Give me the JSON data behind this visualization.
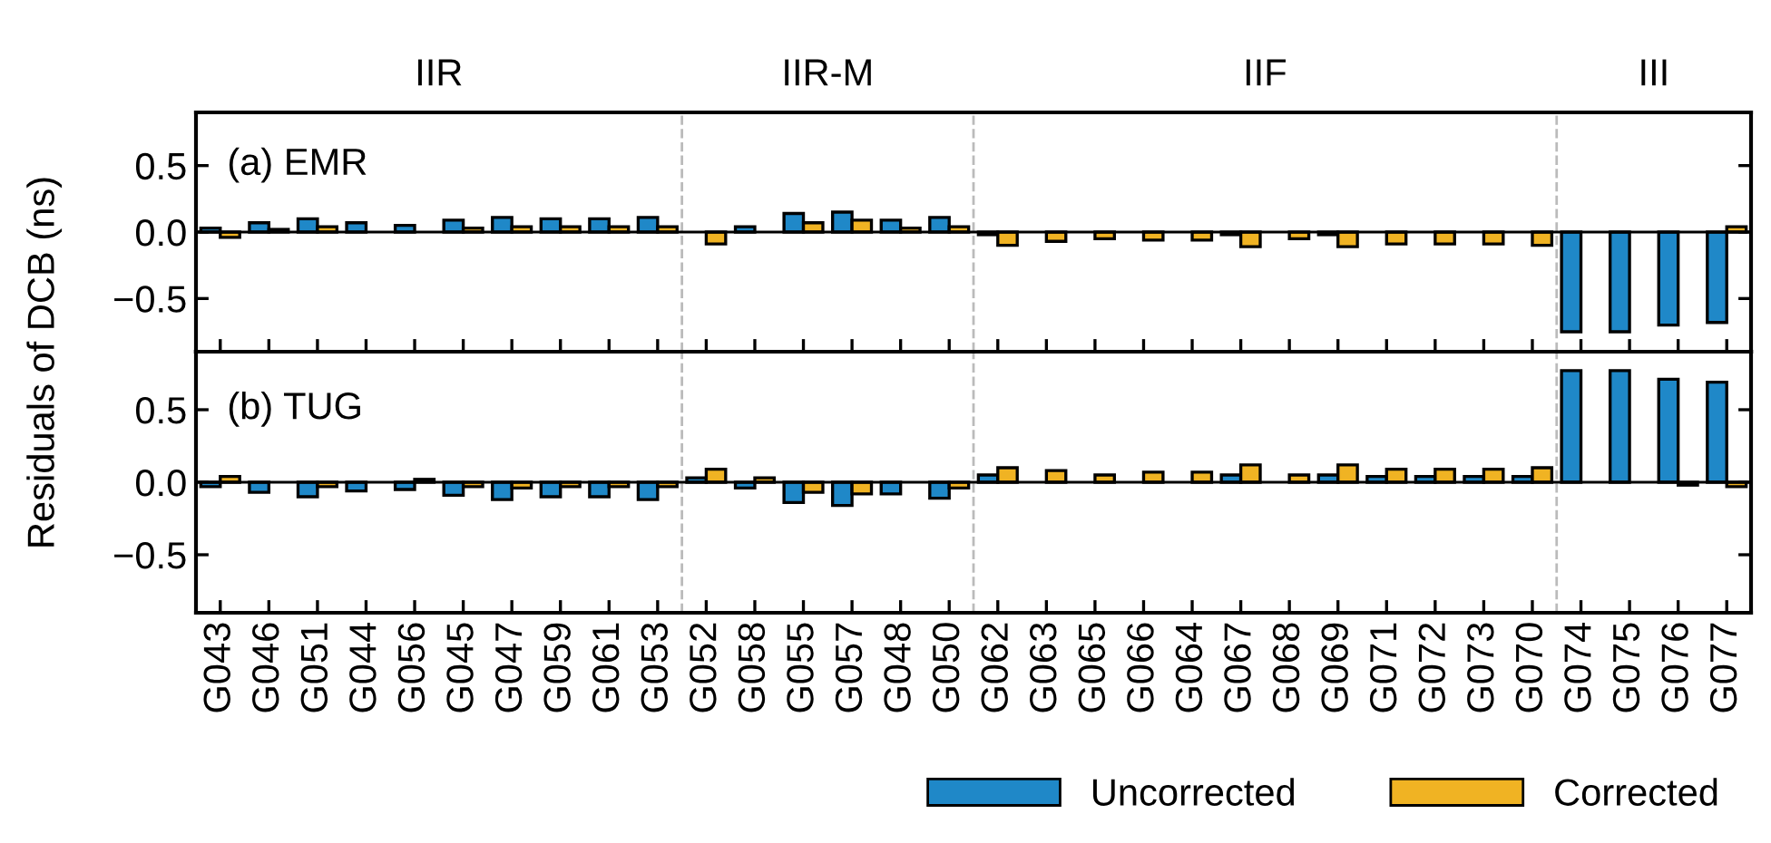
{
  "chart_data": [
    {
      "type": "bar",
      "title": "(a) EMR",
      "ylabel": "Residuals of DCB (ns)",
      "series": [
        {
          "name": "Uncorrected",
          "color": "#1f88c8",
          "values": [
            0.03,
            0.07,
            0.1,
            0.07,
            0.05,
            0.09,
            0.11,
            0.1,
            0.1,
            0.11,
            null,
            0.04,
            0.14,
            0.15,
            0.09,
            0.11,
            -0.02,
            null,
            null,
            null,
            null,
            -0.02,
            null,
            -0.02,
            null,
            null,
            null,
            null,
            -0.75,
            -0.75,
            -0.7,
            -0.68
          ]
        },
        {
          "name": "Corrected",
          "color": "#f0b323",
          "values": [
            -0.04,
            0.02,
            0.04,
            null,
            null,
            0.03,
            0.04,
            0.04,
            0.04,
            0.04,
            -0.09,
            null,
            0.07,
            0.09,
            0.03,
            0.04,
            -0.1,
            -0.07,
            -0.05,
            -0.06,
            -0.06,
            -0.11,
            -0.05,
            -0.11,
            -0.09,
            -0.09,
            -0.09,
            -0.1,
            null,
            null,
            null,
            0.04
          ]
        }
      ],
      "ylim": [
        -0.9,
        0.9
      ],
      "yticks": [
        {
          "value": -0.5,
          "label": "−0.5"
        },
        {
          "value": 0,
          "label": "0.0"
        },
        {
          "value": 0.5,
          "label": "0.5"
        }
      ],
      "tick_labels": "y",
      "annotations": [
        "IIR",
        "IIR-M",
        "IIF",
        "III"
      ],
      "legend": "bottom right"
    },
    {
      "type": "bar",
      "title": "(b) TUG",
      "categories": [
        "G043",
        "G046",
        "G051",
        "G044",
        "G056",
        "G045",
        "G047",
        "G059",
        "G061",
        "G053",
        "G052",
        "G058",
        "G055",
        "G057",
        "G048",
        "G050",
        "G062",
        "G063",
        "G065",
        "G066",
        "G064",
        "G067",
        "G068",
        "G069",
        "G071",
        "G072",
        "G073",
        "G070",
        "G074",
        "G075",
        "G076",
        "G077"
      ],
      "series": [
        {
          "color": "#1f88c8",
          "values": [
            -0.03,
            -0.07,
            -0.1,
            -0.06,
            -0.05,
            -0.09,
            -0.12,
            -0.1,
            -0.1,
            -0.12,
            0.03,
            -0.04,
            -0.14,
            -0.16,
            -0.08,
            -0.11,
            0.05,
            null,
            null,
            null,
            null,
            0.05,
            null,
            0.05,
            0.04,
            0.04,
            0.04,
            0.04,
            0.77,
            0.77,
            0.71,
            0.69
          ]
        },
        {
          "color": "#f0b323",
          "values": [
            0.04,
            null,
            -0.03,
            null,
            0.02,
            -0.03,
            -0.04,
            -0.03,
            -0.03,
            -0.03,
            0.09,
            0.03,
            -0.07,
            -0.08,
            null,
            -0.04,
            0.1,
            0.08,
            0.05,
            0.07,
            0.07,
            0.12,
            0.05,
            0.12,
            0.09,
            0.09,
            0.09,
            0.1,
            null,
            null,
            -0.02,
            -0.03
          ]
        }
      ],
      "ylim": [
        -0.9,
        0.9
      ],
      "yticks": [
        {
          "value": -0.5,
          "label": "−0.5"
        },
        {
          "value": 0,
          "label": "0.0"
        },
        {
          "value": 0.5,
          "label": "0.5"
        }
      ]
    }
  ]
}
